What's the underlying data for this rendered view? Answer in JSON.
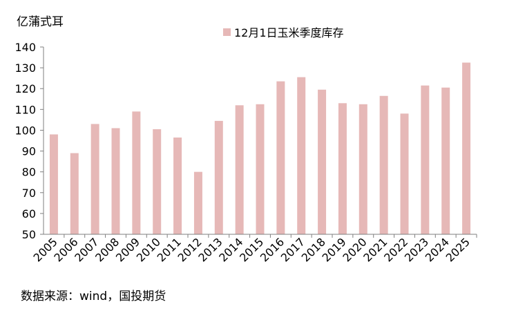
{
  "chart_data": {
    "type": "bar",
    "title": "",
    "ylabel": "亿蒲式耳",
    "xlabel": "",
    "categories": [
      "2005",
      "2006",
      "2007",
      "2008",
      "2009",
      "2010",
      "2011",
      "2012",
      "2013",
      "2014",
      "2015",
      "2016",
      "2017",
      "2018",
      "2019",
      "2020",
      "2021",
      "2022",
      "2023",
      "2024",
      "2025"
    ],
    "series": [
      {
        "name": "12月1日玉米季度库存",
        "color": "#e6b8b7",
        "values": [
          98,
          89,
          103,
          101,
          109,
          100.5,
          96.5,
          80,
          104.5,
          112,
          112.5,
          123.5,
          125.5,
          119.5,
          113,
          112.5,
          116.5,
          108,
          121.5,
          120.5,
          132.5
        ]
      }
    ],
    "ylim": [
      50,
      140
    ],
    "yticks": [
      50,
      60,
      70,
      80,
      90,
      100,
      110,
      120,
      130,
      140
    ],
    "grid": false,
    "legend_position": "top"
  },
  "source": "数据来源：wind，国投期货"
}
